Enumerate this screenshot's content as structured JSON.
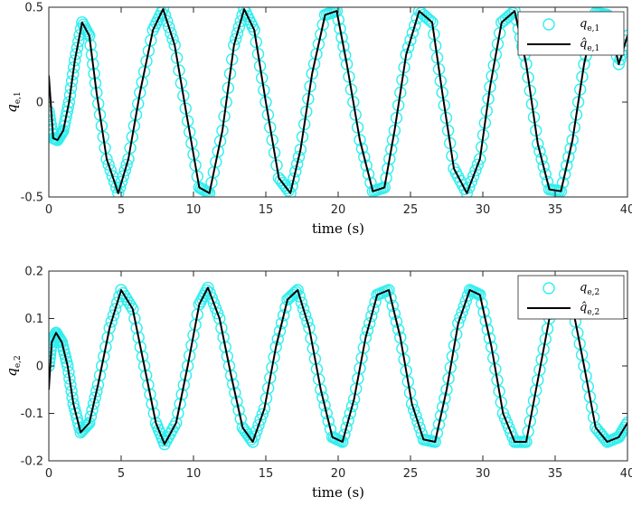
{
  "chart_data": [
    {
      "type": "line",
      "xlabel": "time (s)",
      "ylabel_base": "q",
      "ylabel_sub": "e,1",
      "xlim": [
        0,
        40
      ],
      "ylim": [
        -0.5,
        0.5
      ],
      "xticks": [
        0,
        5,
        10,
        15,
        20,
        25,
        30,
        35,
        40
      ],
      "yticks": [
        -0.5,
        0,
        0.5
      ],
      "ytick_labels": [
        "-0.5",
        "0",
        "0.5"
      ],
      "legend_position": "top-right",
      "series": [
        {
          "label_base": "q",
          "label_sub": "e,1",
          "hat": false,
          "color": "#33eeee",
          "style": "circle-markers",
          "x": [
            0.0,
            0.3,
            0.6,
            1.0,
            1.4,
            1.8,
            2.3,
            2.8,
            3.3,
            4.0,
            4.8,
            5.5,
            6.3,
            7.2,
            7.9,
            8.7,
            9.6,
            10.4,
            11.1,
            12.0,
            12.8,
            13.5,
            14.2,
            15.0,
            15.9,
            16.7,
            17.4,
            18.2,
            19.1,
            19.9,
            20.6,
            21.5,
            22.4,
            23.2,
            23.9,
            24.7,
            25.6,
            26.5,
            27.2,
            28.0,
            28.9,
            29.8,
            30.5,
            31.3,
            32.2,
            33.0,
            33.8,
            34.6,
            35.4,
            36.2,
            37.0,
            37.8,
            38.6,
            39.4,
            40.0
          ],
          "y": [
            -0.05,
            -0.19,
            -0.2,
            -0.15,
            0.0,
            0.22,
            0.42,
            0.35,
            0.05,
            -0.3,
            -0.48,
            -0.3,
            0.05,
            0.38,
            0.49,
            0.3,
            -0.1,
            -0.45,
            -0.48,
            -0.15,
            0.3,
            0.49,
            0.38,
            0.0,
            -0.4,
            -0.48,
            -0.25,
            0.15,
            0.46,
            0.48,
            0.2,
            -0.2,
            -0.47,
            -0.45,
            -0.15,
            0.25,
            0.48,
            0.42,
            0.05,
            -0.35,
            -0.48,
            -0.3,
            0.08,
            0.42,
            0.48,
            0.2,
            -0.22,
            -0.46,
            -0.47,
            -0.2,
            0.2,
            0.47,
            0.46,
            0.2,
            0.35
          ]
        },
        {
          "label_base": "q",
          "label_sub": "e,1",
          "hat": true,
          "color": "#000000",
          "style": "solid-line",
          "x": [
            0.0,
            0.3,
            0.6,
            1.0,
            1.4,
            1.8,
            2.3,
            2.8,
            3.3,
            4.0,
            4.8,
            5.5,
            6.3,
            7.2,
            7.9,
            8.7,
            9.6,
            10.4,
            11.1,
            12.0,
            12.8,
            13.5,
            14.2,
            15.0,
            15.9,
            16.7,
            17.4,
            18.2,
            19.1,
            19.9,
            20.6,
            21.5,
            22.4,
            23.2,
            23.9,
            24.7,
            25.6,
            26.5,
            27.2,
            28.0,
            28.9,
            29.8,
            30.5,
            31.3,
            32.2,
            33.0,
            33.8,
            34.6,
            35.4,
            36.2,
            37.0,
            37.8,
            38.6,
            39.4,
            40.0
          ],
          "y": [
            0.14,
            -0.19,
            -0.2,
            -0.15,
            0.0,
            0.22,
            0.42,
            0.35,
            0.05,
            -0.3,
            -0.48,
            -0.3,
            0.05,
            0.38,
            0.49,
            0.3,
            -0.1,
            -0.45,
            -0.48,
            -0.15,
            0.3,
            0.49,
            0.38,
            0.0,
            -0.4,
            -0.48,
            -0.25,
            0.15,
            0.46,
            0.48,
            0.2,
            -0.2,
            -0.47,
            -0.45,
            -0.15,
            0.25,
            0.48,
            0.42,
            0.05,
            -0.35,
            -0.48,
            -0.3,
            0.08,
            0.42,
            0.48,
            0.2,
            -0.22,
            -0.46,
            -0.47,
            -0.2,
            0.2,
            0.47,
            0.46,
            0.2,
            0.35
          ]
        }
      ]
    },
    {
      "type": "line",
      "xlabel": "time (s)",
      "ylabel_base": "q",
      "ylabel_sub": "e,2",
      "xlim": [
        0,
        40
      ],
      "ylim": [
        -0.2,
        0.2
      ],
      "xticks": [
        0,
        5,
        10,
        15,
        20,
        25,
        30,
        35,
        40
      ],
      "yticks": [
        -0.2,
        -0.1,
        0,
        0.1,
        0.2
      ],
      "ytick_labels": [
        "-0.2",
        "-0.1",
        "0",
        "0.1",
        "0.2"
      ],
      "legend_position": "top-right",
      "series": [
        {
          "label_base": "q",
          "label_sub": "e,2",
          "hat": false,
          "color": "#33eeee",
          "style": "circle-markers",
          "x": [
            0.0,
            0.2,
            0.5,
            0.9,
            1.3,
            1.7,
            2.2,
            2.8,
            3.4,
            4.2,
            5.0,
            5.8,
            6.6,
            7.4,
            8.0,
            8.8,
            9.6,
            10.4,
            11.0,
            11.8,
            12.6,
            13.4,
            14.1,
            14.9,
            15.7,
            16.5,
            17.2,
            18.0,
            18.8,
            19.6,
            20.3,
            21.1,
            21.9,
            22.7,
            23.5,
            24.3,
            25.1,
            25.9,
            26.7,
            27.5,
            28.3,
            29.1,
            29.8,
            30.6,
            31.4,
            32.2,
            33.0,
            33.8,
            34.6,
            35.4,
            36.1,
            37.0,
            37.8,
            38.6,
            39.4,
            40.0
          ],
          "y": [
            0.0,
            0.05,
            0.07,
            0.05,
            0.0,
            -0.08,
            -0.14,
            -0.12,
            -0.04,
            0.08,
            0.16,
            0.12,
            0.0,
            -0.12,
            -0.165,
            -0.12,
            0.0,
            0.13,
            0.165,
            0.1,
            -0.02,
            -0.13,
            -0.16,
            -0.09,
            0.04,
            0.14,
            0.16,
            0.08,
            -0.05,
            -0.15,
            -0.16,
            -0.07,
            0.06,
            0.15,
            0.16,
            0.06,
            -0.08,
            -0.155,
            -0.16,
            -0.05,
            0.09,
            0.16,
            0.15,
            0.04,
            -0.1,
            -0.16,
            -0.16,
            -0.03,
            0.1,
            0.16,
            0.14,
            0.0,
            -0.13,
            -0.16,
            -0.15,
            -0.12
          ]
        },
        {
          "label_base": "q",
          "label_sub": "e,2",
          "hat": true,
          "color": "#000000",
          "style": "solid-line",
          "x": [
            0.0,
            0.2,
            0.5,
            0.9,
            1.3,
            1.7,
            2.2,
            2.8,
            3.4,
            4.2,
            5.0,
            5.8,
            6.6,
            7.4,
            8.0,
            8.8,
            9.6,
            10.4,
            11.0,
            11.8,
            12.6,
            13.4,
            14.1,
            14.9,
            15.7,
            16.5,
            17.2,
            18.0,
            18.8,
            19.6,
            20.3,
            21.1,
            21.9,
            22.7,
            23.5,
            24.3,
            25.1,
            25.9,
            26.7,
            27.5,
            28.3,
            29.1,
            29.8,
            30.6,
            31.4,
            32.2,
            33.0,
            33.8,
            34.6,
            35.4,
            36.1,
            37.0,
            37.8,
            38.6,
            39.4,
            40.0
          ],
          "y": [
            -0.05,
            0.05,
            0.07,
            0.05,
            0.0,
            -0.08,
            -0.14,
            -0.12,
            -0.04,
            0.08,
            0.16,
            0.12,
            0.0,
            -0.12,
            -0.165,
            -0.12,
            0.0,
            0.13,
            0.165,
            0.1,
            -0.02,
            -0.13,
            -0.16,
            -0.09,
            0.04,
            0.14,
            0.16,
            0.08,
            -0.05,
            -0.15,
            -0.16,
            -0.07,
            0.06,
            0.15,
            0.16,
            0.06,
            -0.08,
            -0.155,
            -0.16,
            -0.05,
            0.09,
            0.16,
            0.15,
            0.04,
            -0.1,
            -0.16,
            -0.16,
            -0.03,
            0.1,
            0.16,
            0.14,
            0.0,
            -0.13,
            -0.16,
            -0.15,
            -0.12
          ]
        }
      ]
    }
  ]
}
